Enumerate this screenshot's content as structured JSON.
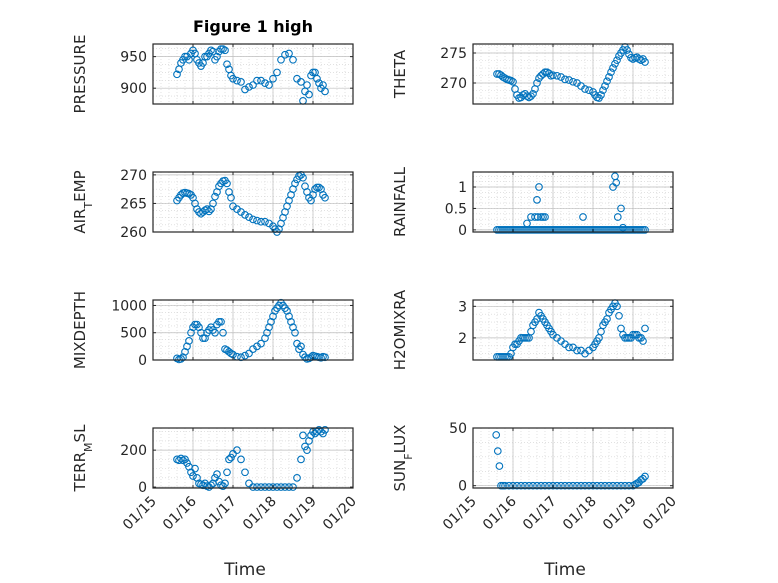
{
  "chart_data": [
    {
      "type": "scatter",
      "title": "Figure 1 high",
      "ylabel": "PRESSURE",
      "xlabel": "",
      "ylim": [
        875,
        970
      ],
      "yticks": [
        "900",
        "950"
      ],
      "grid": "on",
      "x": [
        15.6,
        15.65,
        15.7,
        15.75,
        15.8,
        15.85,
        15.9,
        15.95,
        16.0,
        16.05,
        16.1,
        16.15,
        16.2,
        16.25,
        16.3,
        16.35,
        16.4,
        16.45,
        16.5,
        16.55,
        16.6,
        16.65,
        16.7,
        16.75,
        16.8,
        16.85,
        16.9,
        16.95,
        17.0,
        17.1,
        17.2,
        17.3,
        17.4,
        17.5,
        17.6,
        17.7,
        17.8,
        17.9,
        18.0,
        18.1,
        18.2,
        18.3,
        18.4,
        18.5,
        18.6,
        18.7,
        18.75,
        18.8,
        18.85,
        18.9,
        18.95,
        19.0,
        19.05,
        19.1,
        19.15,
        19.2,
        19.25,
        19.3
      ],
      "y": [
        922,
        930,
        940,
        945,
        950,
        950,
        945,
        955,
        960,
        955,
        945,
        940,
        935,
        940,
        950,
        950,
        955,
        960,
        958,
        945,
        950,
        958,
        962,
        962,
        960,
        938,
        930,
        920,
        915,
        912,
        910,
        898,
        902,
        905,
        912,
        912,
        908,
        905,
        915,
        925,
        945,
        953,
        955,
        945,
        915,
        910,
        880,
        895,
        905,
        890,
        920,
        925,
        925,
        915,
        908,
        900,
        905,
        895
      ]
    },
    {
      "type": "scatter",
      "title": "",
      "ylabel": "THETA",
      "xlabel": "",
      "ylim": [
        266.5,
        276.5
      ],
      "yticks": [
        "270",
        "275"
      ],
      "grid": "on",
      "x": [
        15.6,
        15.65,
        15.7,
        15.75,
        15.8,
        15.85,
        15.9,
        15.95,
        16.0,
        16.05,
        16.1,
        16.15,
        16.2,
        16.25,
        16.3,
        16.35,
        16.4,
        16.45,
        16.5,
        16.55,
        16.6,
        16.65,
        16.7,
        16.75,
        16.8,
        16.85,
        16.9,
        16.95,
        17.0,
        17.1,
        17.2,
        17.3,
        17.4,
        17.5,
        17.6,
        17.7,
        17.8,
        17.9,
        18.0,
        18.05,
        18.1,
        18.15,
        18.2,
        18.25,
        18.3,
        18.35,
        18.4,
        18.45,
        18.5,
        18.55,
        18.6,
        18.65,
        18.7,
        18.75,
        18.8,
        18.85,
        18.9,
        18.95,
        19.0,
        19.05,
        19.1,
        19.15,
        19.2,
        19.25,
        19.3
      ],
      "y": [
        271.5,
        271.5,
        271.3,
        271.0,
        270.8,
        270.6,
        270.5,
        270.4,
        270.2,
        269.0,
        268.0,
        267.5,
        267.6,
        268.0,
        268.2,
        267.8,
        267.6,
        267.8,
        268.2,
        269.0,
        270.0,
        270.8,
        271.2,
        271.5,
        271.8,
        271.8,
        271.6,
        271.2,
        271.3,
        271.2,
        271.0,
        270.6,
        270.5,
        270.2,
        270.0,
        269.5,
        269.0,
        268.8,
        268.5,
        268.0,
        267.6,
        267.5,
        268.0,
        268.8,
        269.5,
        270.3,
        271.0,
        271.8,
        272.5,
        273.2,
        273.8,
        274.5,
        275.0,
        275.5,
        276.0,
        275.5,
        274.8,
        274.2,
        274.0,
        274.2,
        274.3,
        274.0,
        273.8,
        274.0,
        273.5
      ]
    },
    {
      "type": "scatter",
      "title": "",
      "ylabel": "AIR_TEMP",
      "xlabel": "",
      "ylim": [
        260,
        270.5
      ],
      "yticks": [
        "260",
        "265",
        "270"
      ],
      "grid": "on",
      "x": [
        15.6,
        15.65,
        15.7,
        15.75,
        15.8,
        15.85,
        15.9,
        15.95,
        16.0,
        16.05,
        16.1,
        16.15,
        16.2,
        16.25,
        16.3,
        16.35,
        16.4,
        16.45,
        16.5,
        16.55,
        16.6,
        16.65,
        16.7,
        16.75,
        16.8,
        16.85,
        16.9,
        16.95,
        17.0,
        17.1,
        17.2,
        17.3,
        17.4,
        17.5,
        17.6,
        17.7,
        17.8,
        17.9,
        18.0,
        18.05,
        18.1,
        18.15,
        18.2,
        18.25,
        18.3,
        18.35,
        18.4,
        18.45,
        18.5,
        18.55,
        18.6,
        18.65,
        18.7,
        18.75,
        18.8,
        18.85,
        18.9,
        18.95,
        19.0,
        19.05,
        19.1,
        19.15,
        19.2,
        19.25,
        19.3
      ],
      "y": [
        265.5,
        266.0,
        266.5,
        266.8,
        266.9,
        266.8,
        266.7,
        266.5,
        266.0,
        265.0,
        264.0,
        263.5,
        263.2,
        263.5,
        263.8,
        264.0,
        263.6,
        264.0,
        265.0,
        266.2,
        267.0,
        268.0,
        268.5,
        268.9,
        269.0,
        268.5,
        267.0,
        266.0,
        264.5,
        264.0,
        263.5,
        263.0,
        262.6,
        262.2,
        262.0,
        261.8,
        261.8,
        261.5,
        261.0,
        260.5,
        260.0,
        260.5,
        261.5,
        262.5,
        263.5,
        264.5,
        265.5,
        266.5,
        267.5,
        268.5,
        269.2,
        269.8,
        270.0,
        269.5,
        268.0,
        267.0,
        266.0,
        265.5,
        266.5,
        267.5,
        267.8,
        267.8,
        267.5,
        266.5,
        266.0
      ]
    },
    {
      "type": "scatter",
      "title": "",
      "ylabel": "RAINFALL",
      "xlabel": "",
      "ylim": [
        -0.05,
        1.35
      ],
      "yticks": [
        "0",
        "0.5",
        "1"
      ],
      "grid": "on",
      "x": [
        15.6,
        15.65,
        15.7,
        15.75,
        15.8,
        15.85,
        15.9,
        15.95,
        16.0,
        16.05,
        16.1,
        16.15,
        16.2,
        16.25,
        16.3,
        16.35,
        16.4,
        16.45,
        16.5,
        16.55,
        16.6,
        16.65,
        16.7,
        16.75,
        16.8,
        16.85,
        16.9,
        16.95,
        17.0,
        17.05,
        17.1,
        17.15,
        17.2,
        17.25,
        17.3,
        17.35,
        17.4,
        17.45,
        17.5,
        17.55,
        17.6,
        17.65,
        17.7,
        17.75,
        17.8,
        17.85,
        17.9,
        17.95,
        18.0,
        18.05,
        18.1,
        18.15,
        18.2,
        18.25,
        18.3,
        18.35,
        18.4,
        18.45,
        18.5,
        18.55,
        18.6,
        18.65,
        18.7,
        18.75,
        18.8,
        18.85,
        18.9,
        18.95,
        19.0,
        19.05,
        19.1,
        19.15,
        19.2,
        19.25,
        19.3,
        16.35,
        16.45,
        16.55,
        16.6,
        16.62,
        16.65,
        16.7,
        16.75,
        16.8,
        17.75,
        18.5,
        18.55,
        18.58,
        18.62,
        18.7,
        18.75
      ],
      "y": [
        0,
        0,
        0,
        0,
        0,
        0,
        0,
        0,
        0,
        0,
        0,
        0,
        0,
        0,
        0,
        0,
        0,
        0,
        0,
        0,
        0,
        0,
        0,
        0,
        0,
        0,
        0,
        0,
        0,
        0,
        0,
        0,
        0,
        0,
        0,
        0,
        0,
        0,
        0,
        0,
        0,
        0,
        0,
        0,
        0,
        0,
        0,
        0,
        0,
        0,
        0,
        0,
        0,
        0,
        0,
        0,
        0,
        0,
        0,
        0,
        0,
        0,
        0,
        0,
        0,
        0,
        0,
        0,
        0,
        0,
        0,
        0,
        0,
        0,
        0,
        0.15,
        0.3,
        0.3,
        0.7,
        0.3,
        1.0,
        0.3,
        0.3,
        0.3,
        0.3,
        1.0,
        1.25,
        1.1,
        0.3,
        0.5,
        0.05
      ]
    },
    {
      "type": "scatter",
      "title": "",
      "ylabel": "MIXDEPTH",
      "xlabel": "",
      "ylim": [
        0,
        1100
      ],
      "yticks": [
        "0",
        "500",
        "1000"
      ],
      "grid": "on",
      "x": [
        15.6,
        15.65,
        15.7,
        15.75,
        15.8,
        15.85,
        15.9,
        15.95,
        16.0,
        16.05,
        16.1,
        16.15,
        16.2,
        16.25,
        16.3,
        16.35,
        16.4,
        16.45,
        16.5,
        16.55,
        16.6,
        16.65,
        16.7,
        16.75,
        16.8,
        16.85,
        16.9,
        16.95,
        17.0,
        17.1,
        17.2,
        17.3,
        17.4,
        17.5,
        17.6,
        17.7,
        17.8,
        17.85,
        17.9,
        17.95,
        18.0,
        18.05,
        18.1,
        18.15,
        18.2,
        18.25,
        18.3,
        18.35,
        18.4,
        18.45,
        18.5,
        18.55,
        18.6,
        18.65,
        18.7,
        18.75,
        18.8,
        18.85,
        18.9,
        18.95,
        19.0,
        19.05,
        19.1,
        19.15,
        19.2,
        19.25,
        19.3
      ],
      "y": [
        30,
        10,
        20,
        50,
        150,
        250,
        350,
        500,
        600,
        650,
        650,
        600,
        500,
        400,
        400,
        500,
        550,
        600,
        550,
        500,
        650,
        700,
        700,
        500,
        200,
        180,
        150,
        120,
        100,
        60,
        50,
        80,
        120,
        200,
        250,
        300,
        400,
        500,
        600,
        700,
        800,
        900,
        950,
        1000,
        1050,
        1000,
        950,
        900,
        800,
        700,
        600,
        500,
        300,
        200,
        250,
        100,
        50,
        20,
        30,
        50,
        80,
        70,
        60,
        50,
        40,
        60,
        50
      ]
    },
    {
      "type": "scatter",
      "title": "",
      "ylabel": "H2OMIXRA",
      "xlabel": "",
      "ylim": [
        1.3,
        3.2
      ],
      "yticks": [
        "2",
        "3"
      ],
      "grid": "on",
      "x": [
        15.6,
        15.65,
        15.7,
        15.75,
        15.8,
        15.85,
        15.9,
        15.95,
        16.0,
        16.05,
        16.1,
        16.15,
        16.2,
        16.25,
        16.3,
        16.35,
        16.4,
        16.45,
        16.5,
        16.55,
        16.6,
        16.65,
        16.7,
        16.75,
        16.8,
        16.85,
        16.9,
        16.95,
        17.0,
        17.1,
        17.2,
        17.3,
        17.4,
        17.5,
        17.6,
        17.7,
        17.8,
        17.9,
        18.0,
        18.05,
        18.1,
        18.15,
        18.2,
        18.25,
        18.3,
        18.35,
        18.4,
        18.45,
        18.5,
        18.55,
        18.6,
        18.65,
        18.7,
        18.75,
        18.8,
        18.85,
        18.9,
        18.95,
        19.0,
        19.05,
        19.1,
        19.15,
        19.2,
        19.25,
        19.3
      ],
      "y": [
        1.4,
        1.4,
        1.4,
        1.4,
        1.4,
        1.4,
        1.4,
        1.5,
        1.7,
        1.8,
        1.8,
        1.9,
        2.0,
        2.0,
        2.0,
        2.0,
        2.0,
        2.2,
        2.4,
        2.5,
        2.6,
        2.8,
        2.7,
        2.6,
        2.5,
        2.4,
        2.3,
        2.2,
        2.1,
        2.0,
        1.9,
        1.8,
        1.7,
        1.7,
        1.6,
        1.6,
        1.5,
        1.6,
        1.7,
        1.8,
        1.9,
        2.0,
        2.2,
        2.4,
        2.5,
        2.6,
        2.8,
        2.9,
        3.0,
        3.1,
        3.0,
        2.7,
        2.3,
        2.1,
        2.0,
        2.0,
        2.0,
        2.0,
        2.1,
        2.1,
        2.1,
        2.0,
        2.0,
        1.9,
        2.3
      ]
    },
    {
      "type": "scatter",
      "title": "",
      "ylabel": "TERR_MSL",
      "xlabel": "Time",
      "ylim": [
        -5,
        320
      ],
      "yticks": [
        "0",
        "200"
      ],
      "grid": "on",
      "xticks": [
        "01/15",
        "01/16",
        "01/17",
        "01/18",
        "01/19",
        "01/20"
      ],
      "x": [
        15.6,
        15.65,
        15.7,
        15.75,
        15.8,
        15.85,
        15.9,
        15.95,
        16.0,
        16.05,
        16.1,
        16.15,
        16.2,
        16.25,
        16.3,
        16.35,
        16.4,
        16.45,
        16.5,
        16.55,
        16.6,
        16.65,
        16.7,
        16.75,
        16.8,
        16.85,
        16.9,
        16.95,
        17.0,
        17.1,
        17.2,
        17.3,
        17.4,
        17.5,
        17.6,
        17.7,
        17.8,
        17.9,
        18.0,
        18.1,
        18.2,
        18.3,
        18.4,
        18.5,
        18.6,
        18.7,
        18.75,
        18.8,
        18.85,
        18.9,
        18.95,
        19.0,
        19.05,
        19.1,
        19.15,
        19.2,
        19.25,
        19.3
      ],
      "y": [
        150,
        145,
        155,
        145,
        150,
        130,
        110,
        80,
        60,
        100,
        50,
        20,
        15,
        10,
        20,
        5,
        0,
        10,
        20,
        50,
        70,
        30,
        10,
        5,
        20,
        80,
        150,
        160,
        180,
        200,
        150,
        80,
        20,
        0,
        0,
        0,
        0,
        0,
        0,
        0,
        0,
        0,
        0,
        0,
        50,
        150,
        280,
        220,
        200,
        250,
        280,
        300,
        290,
        300,
        310,
        300,
        290,
        310
      ]
    },
    {
      "type": "scatter",
      "title": "",
      "ylabel": "SUN_FLUX",
      "xlabel": "Time",
      "ylim": [
        -2,
        50
      ],
      "yticks": [
        "0",
        "50"
      ],
      "grid": "on",
      "xticks": [
        "01/15",
        "01/16",
        "01/17",
        "01/18",
        "01/19",
        "01/20"
      ],
      "x": [
        15.58,
        15.62,
        15.66,
        15.7,
        15.75,
        15.8,
        15.9,
        16.0,
        16.1,
        16.2,
        16.3,
        16.4,
        16.5,
        16.6,
        16.7,
        16.8,
        16.9,
        17.0,
        17.1,
        17.2,
        17.3,
        17.4,
        17.5,
        17.6,
        17.7,
        17.8,
        17.9,
        18.0,
        18.1,
        18.2,
        18.3,
        18.4,
        18.5,
        18.6,
        18.7,
        18.8,
        18.9,
        19.0,
        19.05,
        19.1,
        19.15,
        19.2,
        19.25,
        19.3
      ],
      "y": [
        44,
        30,
        17,
        0,
        0,
        0,
        0,
        0,
        0,
        0,
        0,
        0,
        0,
        0,
        0,
        0,
        0,
        0,
        0,
        0,
        0,
        0,
        0,
        0,
        0,
        0,
        0,
        0,
        0,
        0,
        0,
        0,
        0,
        0,
        0,
        0,
        0,
        0,
        1,
        2,
        3,
        5,
        6,
        8
      ]
    }
  ]
}
